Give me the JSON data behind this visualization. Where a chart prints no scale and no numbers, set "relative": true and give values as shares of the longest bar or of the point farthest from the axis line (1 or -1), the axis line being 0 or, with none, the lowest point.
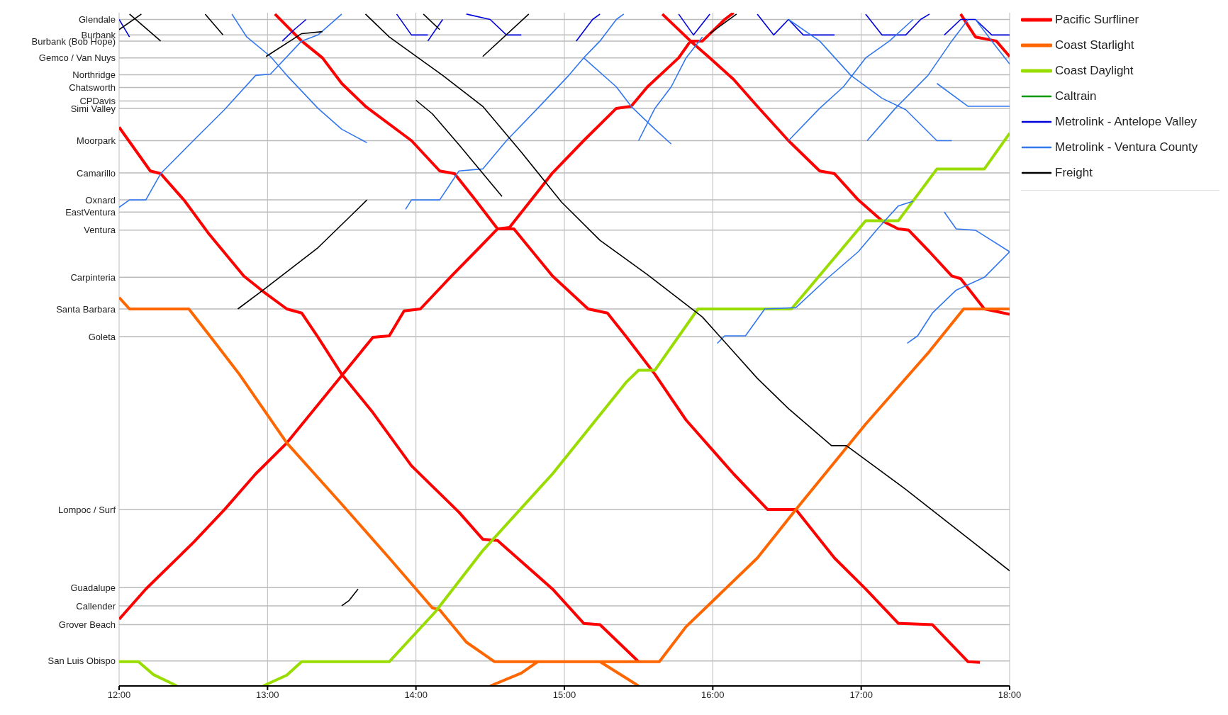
{
  "chart_data": {
    "type": "line",
    "relative": true,
    "xlim": [
      12,
      18
    ],
    "xticks": [
      {
        "value": 12,
        "label": "12:00"
      },
      {
        "value": 13,
        "label": "13:00"
      },
      {
        "value": 14,
        "label": "14:00"
      },
      {
        "value": 15,
        "label": "15:00"
      },
      {
        "value": 16,
        "label": "16:00"
      },
      {
        "value": 17,
        "label": "17:00"
      },
      {
        "value": 18,
        "label": "18:00"
      }
    ],
    "ref_lines": [
      {
        "axis": "y",
        "value": 0.99,
        "label": "Glendale",
        "color": "#bbbbbb"
      },
      {
        "axis": "y",
        "value": 0.967,
        "label": "Burbank",
        "color": "#bbbbbb"
      },
      {
        "axis": "y",
        "value": 0.958,
        "label": "Burbank (Bob Hope)",
        "color": "#bbbbbb"
      },
      {
        "axis": "y",
        "value": 0.933,
        "label": "Gemco / Van Nuys",
        "color": "#bbbbbb"
      },
      {
        "axis": "y",
        "value": 0.908,
        "label": "Northridge",
        "color": "#bbbbbb"
      },
      {
        "axis": "y",
        "value": 0.889,
        "label": "Chatsworth",
        "color": "#bbbbbb"
      },
      {
        "axis": "y",
        "value": 0.869,
        "label": "CPDavis",
        "color": "#bbbbbb"
      },
      {
        "axis": "y",
        "value": 0.858,
        "label": "Simi Valley",
        "color": "#bbbbbb"
      },
      {
        "axis": "y",
        "value": 0.81,
        "label": "Moorpark",
        "color": "#bbbbbb"
      },
      {
        "axis": "y",
        "value": 0.762,
        "label": "Camarillo",
        "color": "#bbbbbb"
      },
      {
        "axis": "y",
        "value": 0.722,
        "label": "Oxnard",
        "color": "#bbbbbb"
      },
      {
        "axis": "y",
        "value": 0.704,
        "label": "EastVentura",
        "color": "#bbbbbb"
      },
      {
        "axis": "y",
        "value": 0.677,
        "label": "Ventura",
        "color": "#bbbbbb"
      },
      {
        "axis": "y",
        "value": 0.607,
        "label": "Carpinteria",
        "color": "#bbbbbb"
      },
      {
        "axis": "y",
        "value": 0.56,
        "label": "Santa Barbara",
        "color": "#bbbbbb"
      },
      {
        "axis": "y",
        "value": 0.519,
        "label": "Goleta",
        "color": "#bbbbbb"
      },
      {
        "axis": "y",
        "value": 0.262,
        "label": "Lompoc / Surf",
        "color": "#bbbbbb"
      },
      {
        "axis": "y",
        "value": 0.146,
        "label": "Guadalupe",
        "color": "#bbbbbb"
      },
      {
        "axis": "y",
        "value": 0.119,
        "label": "Callender",
        "color": "#bbbbbb"
      },
      {
        "axis": "y",
        "value": 0.091,
        "label": "Grover Beach",
        "color": "#bbbbbb"
      },
      {
        "axis": "y",
        "value": 0.037,
        "label": "San Luis Obispo",
        "color": "#bbbbbb"
      }
    ],
    "grid": "x",
    "legend": "right",
    "marker": "none",
    "line_style": "solid",
    "series": [
      {
        "name": "Pacific Surfliner",
        "color": "#ff0000",
        "x": [
          12.0,
          12.21,
          12.28,
          12.44,
          12.6,
          12.84,
          12.97,
          13.13,
          13.23,
          13.34,
          13.5,
          13.71,
          13.97,
          14.29,
          14.45,
          14.55,
          14.92,
          15.13,
          15.24,
          15.5,
          null,
          12.0,
          12.18,
          12.5,
          12.71,
          12.92,
          13.13,
          13.5,
          13.71,
          13.82,
          13.92,
          14.03,
          14.24,
          14.4,
          14.55,
          14.63,
          14.92,
          15.13,
          15.35,
          15.45,
          15.56,
          15.77,
          15.85,
          15.93,
          16.08,
          16.14,
          null,
          13.05,
          13.23,
          13.37,
          13.5,
          13.66,
          13.97,
          14.16,
          14.26,
          14.4,
          14.55,
          14.66,
          14.92,
          15.16,
          15.29,
          15.42,
          15.61,
          15.82,
          16.14,
          16.37,
          16.56,
          16.82,
          17.03,
          17.25,
          17.48,
          17.72,
          17.8,
          null,
          15.66,
          15.85,
          15.98,
          16.14,
          16.3,
          16.51,
          16.72,
          16.82,
          16.98,
          17.14,
          17.25,
          17.32,
          17.46,
          17.61,
          17.67,
          17.83,
          18.0,
          null,
          17.67,
          17.77,
          17.91,
          18.0
        ],
        "values": [
          0.83,
          0.765,
          0.761,
          0.721,
          0.673,
          0.609,
          0.586,
          0.56,
          0.554,
          0.518,
          0.463,
          0.406,
          0.327,
          0.258,
          0.218,
          0.216,
          0.144,
          0.093,
          0.091,
          0.036,
          null,
          0.099,
          0.144,
          0.213,
          0.262,
          0.315,
          0.361,
          0.461,
          0.518,
          0.52,
          0.557,
          0.56,
          0.609,
          0.645,
          0.679,
          0.681,
          0.762,
          0.81,
          0.858,
          0.861,
          0.89,
          0.933,
          0.958,
          0.958,
          0.99,
          1.0,
          null,
          0.998,
          0.958,
          0.933,
          0.895,
          0.861,
          0.81,
          0.765,
          0.761,
          0.722,
          0.679,
          0.679,
          0.609,
          0.56,
          0.554,
          0.518,
          0.463,
          0.395,
          0.315,
          0.262,
          0.262,
          0.19,
          0.144,
          0.093,
          0.091,
          0.036,
          0.035,
          null,
          0.998,
          0.958,
          0.933,
          0.901,
          0.861,
          0.81,
          0.765,
          0.761,
          0.722,
          0.691,
          0.679,
          0.677,
          0.645,
          0.609,
          0.605,
          0.56,
          0.552,
          null,
          0.998,
          0.964,
          0.958,
          0.935
        ]
      },
      {
        "name": "Coast Starlight",
        "color": "#ff6600",
        "x": [
          12.0,
          12.07,
          12.47,
          12.65,
          12.81,
          13.13,
          13.5,
          13.82,
          14.11,
          14.16,
          14.34,
          14.53,
          15.64,
          15.82,
          16.3,
          16.56,
          17.03,
          17.46,
          17.69,
          18.0,
          null,
          14.5,
          14.71,
          14.82,
          15.24,
          15.4,
          15.5
        ],
        "values": [
          0.577,
          0.56,
          0.56,
          0.509,
          0.463,
          0.361,
          0.27,
          0.19,
          0.116,
          0.113,
          0.065,
          0.036,
          0.036,
          0.088,
          0.19,
          0.262,
          0.389,
          0.497,
          0.56,
          0.56,
          null,
          0,
          0.019,
          0.036,
          0.036,
          0.014,
          0
        ]
      },
      {
        "name": "Coast Daylight",
        "color": "#99dd00",
        "x": [
          12.0,
          12.13,
          12.23,
          12.39,
          null,
          12.97,
          13.13,
          13.23,
          13.82,
          14.13,
          14.45,
          14.92,
          15.42,
          15.5,
          15.61,
          15.9,
          16.53,
          17.03,
          17.25,
          17.51,
          17.83,
          18.0
        ],
        "values": [
          0.036,
          0.036,
          0.017,
          0,
          null,
          0,
          0.016,
          0.036,
          0.036,
          0.11,
          0.201,
          0.315,
          0.452,
          0.469,
          0.469,
          0.56,
          0.56,
          0.691,
          0.691,
          0.768,
          0.768,
          0.821
        ]
      },
      {
        "name": "Caltrain",
        "color": "#009900"
      },
      {
        "name": "Metrolink - Antelope Valley",
        "color": "#0000dd",
        "x": [
          12.0,
          12.07,
          null,
          13.1,
          13.18,
          13.26,
          null,
          13.87,
          13.97,
          14.08,
          null,
          14.08,
          14.18,
          null,
          14.34,
          14.5,
          14.61,
          14.71,
          null,
          15.08,
          15.19,
          15.24,
          null,
          15.77,
          15.87,
          15.98,
          null,
          16.3,
          16.41,
          16.51,
          16.61,
          16.82,
          null,
          17.03,
          17.14,
          17.3,
          17.4,
          17.46,
          null,
          17.56,
          17.67,
          17.77,
          17.88,
          18.0
        ],
        "values": [
          0.99,
          0.964,
          null,
          0.958,
          0.975,
          0.99,
          null,
          0.998,
          0.967,
          0.967,
          null,
          0.958,
          0.99,
          null,
          0.998,
          0.99,
          0.967,
          0.967,
          null,
          0.958,
          0.99,
          0.998,
          null,
          0.998,
          0.967,
          0.998,
          null,
          0.998,
          0.967,
          0.99,
          0.967,
          0.967,
          null,
          0.998,
          0.967,
          0.967,
          0.99,
          0.998,
          null,
          0.967,
          0.99,
          0.99,
          0.967,
          0.967
        ]
      },
      {
        "name": "Metrolink - Ventura County",
        "color": "#3377ee",
        "x": [
          12.0,
          12.07,
          12.18,
          12.28,
          12.5,
          12.71,
          12.92,
          13.02,
          13.23,
          13.34,
          13.5,
          null,
          12.76,
          12.86,
          13.02,
          13.13,
          13.34,
          13.5,
          13.67,
          null,
          13.93,
          13.97,
          14.16,
          14.29,
          14.45,
          14.61,
          14.82,
          15.03,
          15.13,
          15.24,
          15.35,
          15.4,
          null,
          15.5,
          15.61,
          15.72,
          15.82,
          15.93,
          null,
          15.13,
          15.35,
          15.45,
          15.61,
          15.72,
          null,
          16.03,
          16.08,
          16.22,
          16.35,
          16.56,
          16.77,
          16.98,
          17.11,
          17.25,
          17.35,
          null,
          17.31,
          17.38,
          17.48,
          17.64,
          17.83,
          18.0,
          null,
          16.51,
          16.72,
          16.88,
          17.03,
          17.19,
          17.35,
          null,
          17.04,
          17.23,
          17.45,
          17.61,
          17.72,
          null,
          16.51,
          16.72,
          16.93,
          17.14,
          17.3,
          17.51,
          17.61,
          null,
          17.56,
          17.64,
          17.77,
          18.0,
          null,
          17.77,
          17.88,
          18.0,
          null,
          17.51,
          17.72,
          18.0
        ],
        "values": [
          0.711,
          0.722,
          0.722,
          0.761,
          0.81,
          0.856,
          0.907,
          0.909,
          0.958,
          0.967,
          0.998,
          null,
          0.998,
          0.964,
          0.935,
          0.907,
          0.858,
          0.827,
          0.807,
          null,
          0.708,
          0.722,
          0.722,
          0.765,
          0.768,
          0.81,
          0.858,
          0.907,
          0.933,
          0.958,
          0.99,
          0.998,
          null,
          0.81,
          0.858,
          0.89,
          0.933,
          0.964,
          null,
          0.933,
          0.89,
          0.861,
          0.827,
          0.805,
          null,
          0.509,
          0.52,
          0.52,
          0.56,
          0.562,
          0.605,
          0.645,
          0.679,
          0.713,
          0.72,
          null,
          0.509,
          0.52,
          0.554,
          0.588,
          0.607,
          0.645,
          null,
          0.81,
          0.858,
          0.89,
          0.933,
          0.958,
          0.99,
          null,
          0.81,
          0.858,
          0.907,
          0.958,
          0.99,
          null,
          0.99,
          0.958,
          0.907,
          0.873,
          0.856,
          0.81,
          0.81,
          null,
          0.704,
          0.679,
          0.677,
          0.645,
          null,
          0.99,
          0.958,
          0.924,
          null,
          0.895,
          0.861,
          0.861
        ]
      },
      {
        "name": "Freight",
        "color": "#000000",
        "x": [
          13.66,
          13.82,
          14.18,
          14.45,
          14.71,
          14.98,
          15.24,
          15.56,
          15.93,
          16.3,
          16.51,
          16.8,
          16.9,
          17.3,
          18.0,
          null,
          14.0,
          14.11,
          14.29,
          14.58,
          null,
          12.8,
          12.97,
          13.34,
          13.55,
          13.67,
          null,
          13.5,
          13.55,
          13.61,
          null,
          12.07,
          12.28,
          null,
          12.0,
          12.15,
          null,
          12.58,
          12.7,
          null,
          12.99,
          13.23,
          13.37,
          null,
          14.45,
          14.76,
          null,
          14.05,
          14.16,
          null,
          15.98,
          16.16
        ],
        "values": [
          0.998,
          0.964,
          0.907,
          0.861,
          0.793,
          0.719,
          0.662,
          0.611,
          0.548,
          0.457,
          0.412,
          0.357,
          0.357,
          0.292,
          0.171,
          null,
          0.87,
          0.85,
          0.804,
          0.727,
          null,
          0.56,
          0.588,
          0.651,
          0.696,
          0.722,
          null,
          0.119,
          0.127,
          0.144,
          null,
          0.998,
          0.958,
          null,
          0.975,
          0.998,
          null,
          0.998,
          0.967,
          null,
          0.935,
          0.969,
          0.972,
          null,
          0.935,
          0.998,
          null,
          0.998,
          0.975,
          null,
          0.969,
          0.998
        ]
      }
    ]
  }
}
